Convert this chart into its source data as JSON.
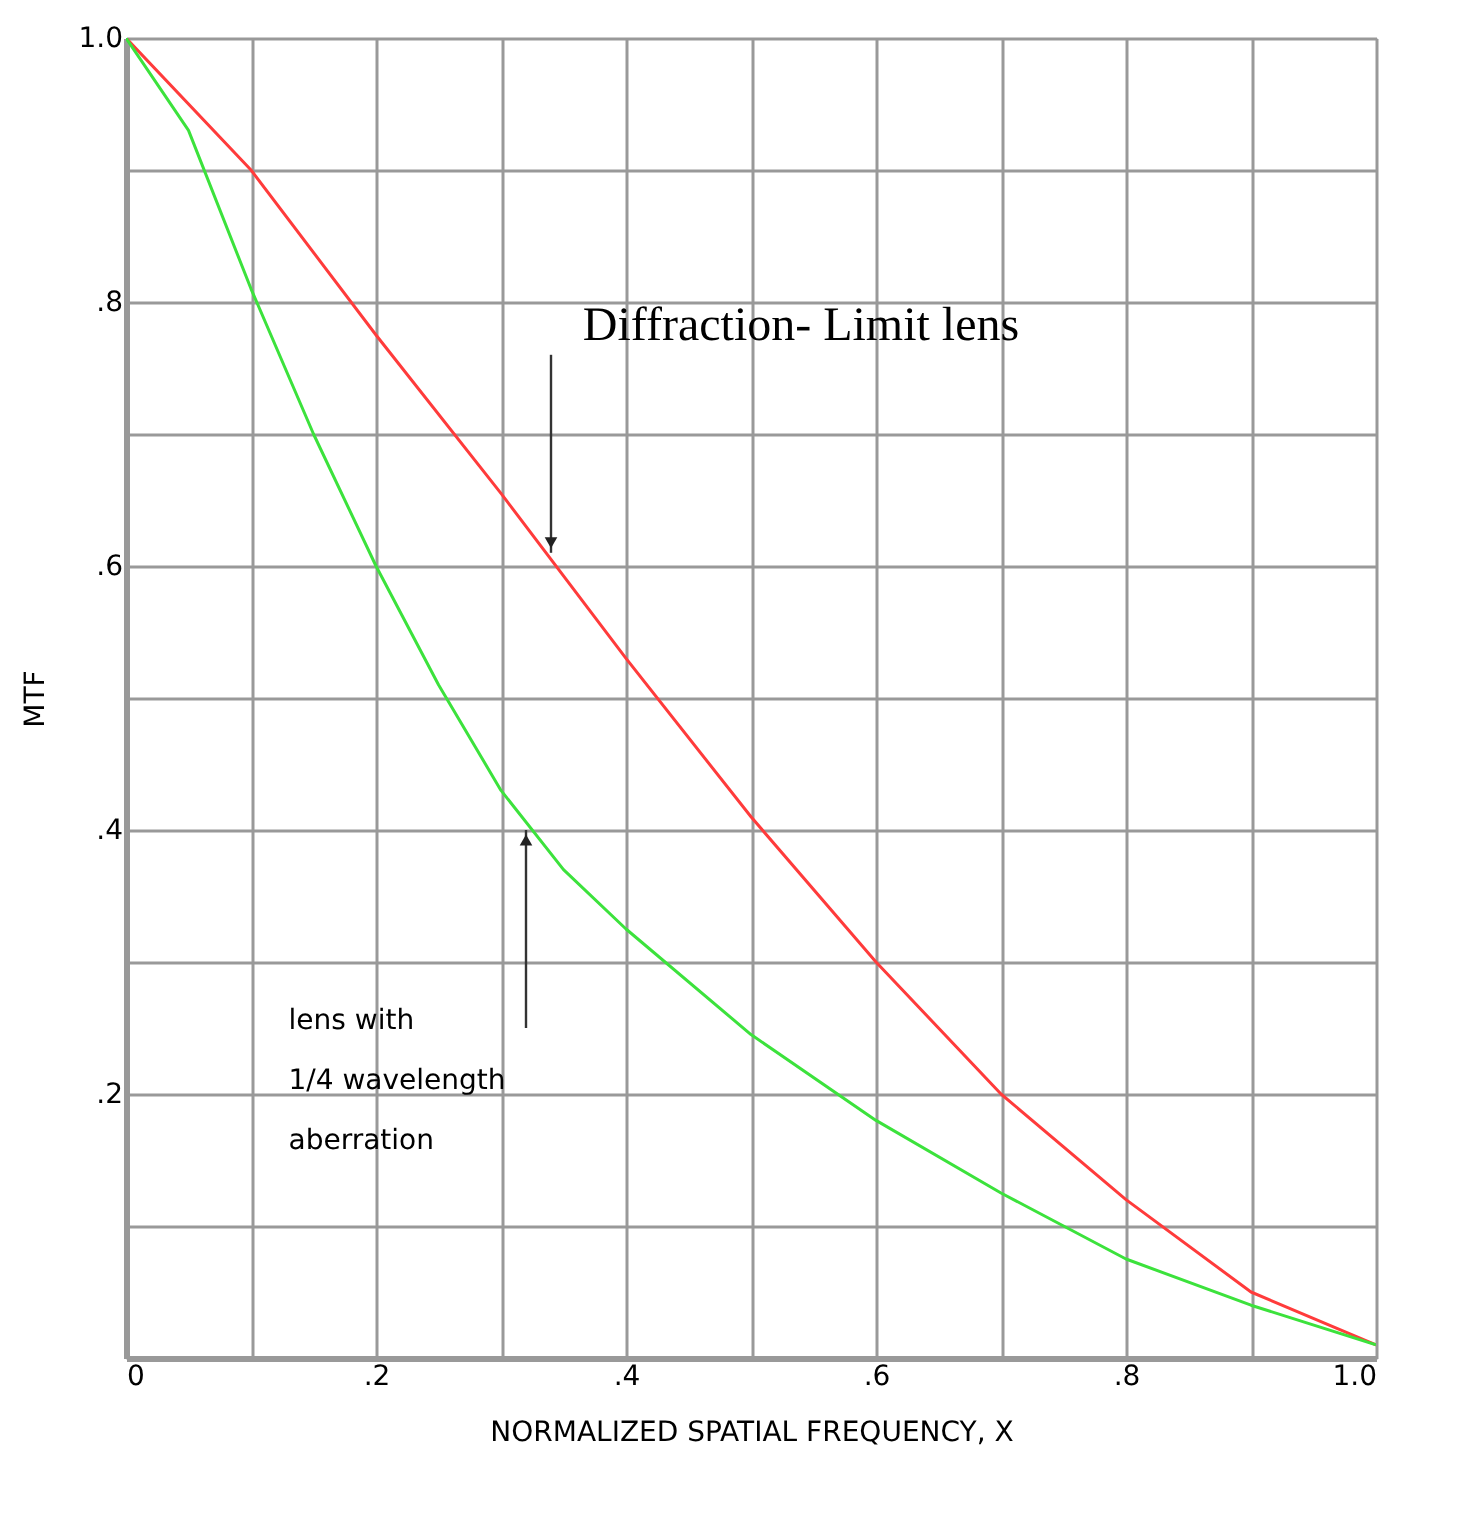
{
  "chart_data": {
    "type": "line",
    "xlabel": "NORMALIZED SPATIAL FREQUENCY, X",
    "ylabel": "MTF",
    "series": [
      {
        "color": "#ff3b3b",
        "x": [
          0,
          0.1,
          0.2,
          0.3,
          0.4,
          0.5,
          0.6,
          0.7,
          0.8,
          0.9,
          1.0
        ],
        "values": [
          1.0,
          0.9,
          0.775,
          0.655,
          0.53,
          0.41,
          0.3,
          0.2,
          0.12,
          0.05,
          0.01
        ]
      },
      {
        "color": "#3ce23c",
        "x": [
          0,
          0.05,
          0.1,
          0.15,
          0.2,
          0.25,
          0.3,
          0.35,
          0.4,
          0.5,
          0.6,
          0.7,
          0.8,
          0.9,
          1.0
        ],
        "values": [
          1.0,
          0.93,
          0.81,
          0.7,
          0.6,
          0.51,
          0.43,
          0.37,
          0.325,
          0.245,
          0.18,
          0.125,
          0.075,
          0.04,
          0.01
        ]
      }
    ],
    "annotations": [
      {
        "text": "Diffraction- Limit lens",
        "x": 0.34,
        "y": 0.61
      },
      {
        "text": "lens with\n1/4 wavelength\naberration",
        "x": 0.32,
        "y": 0.4
      }
    ],
    "xlim": [
      0,
      1.0
    ],
    "ylim": [
      0,
      1.0
    ],
    "xticks": [
      0,
      {
        "value": 0.1,
        "label": null
      },
      {
        "value": 0.2,
        "label": ".2"
      },
      {
        "value": 0.3,
        "label": null
      },
      {
        "value": 0.4,
        "label": ".4"
      },
      {
        "value": 0.5,
        "label": null
      },
      {
        "value": 0.6,
        "label": ".6"
      },
      {
        "value": 0.7,
        "label": null
      },
      {
        "value": 0.8,
        "label": ".8"
      },
      {
        "value": 0.9,
        "label": null
      },
      {
        "value": 1.0,
        "label": "1.0"
      }
    ],
    "yticks": [
      {
        "value": 0,
        "label": null
      },
      {
        "value": 0.1,
        "label": null
      },
      {
        "value": 0.2,
        "label": ".2"
      },
      {
        "value": 0.3,
        "label": null
      },
      {
        "value": 0.4,
        "label": ".4"
      },
      {
        "value": 0.5,
        "label": null
      },
      {
        "value": 0.6,
        "label": ".6"
      },
      {
        "value": 0.7,
        "label": null
      },
      {
        "value": 0.8,
        "label": ".8"
      },
      {
        "value": 0.9,
        "label": null
      },
      {
        "value": 1.0,
        "label": "1.0"
      }
    ],
    "grid": true,
    "legend": false,
    "marker": "none",
    "line_style": "solid"
  }
}
